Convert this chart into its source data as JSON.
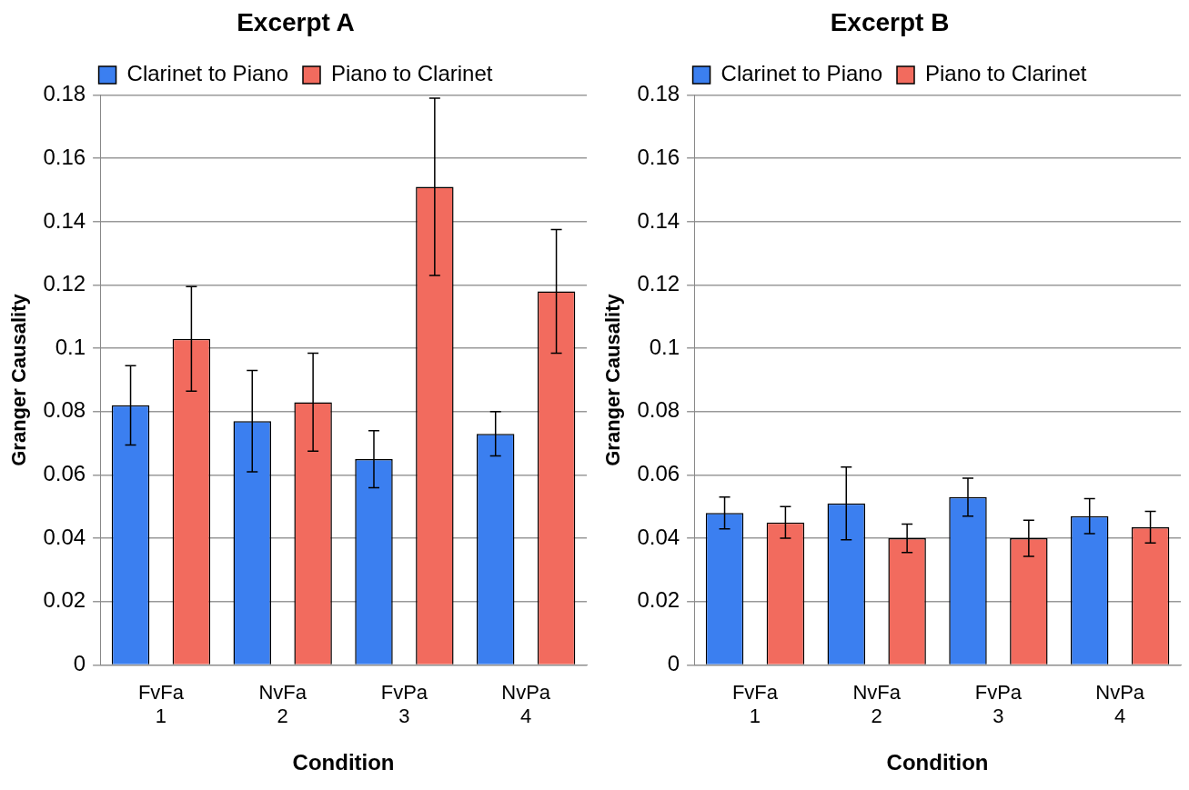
{
  "chart_data": [
    {
      "type": "bar",
      "title": "Excerpt A",
      "xlabel": "Condition",
      "ylabel": "Granger Causality",
      "categories": [
        "FvFa\n1",
        "NvFa\n2",
        "FvPa\n3",
        "NvPa\n4"
      ],
      "series": [
        {
          "name": "Clarinet to Piano",
          "color": "#3b7ff0",
          "values": [
            0.082,
            0.077,
            0.065,
            0.073
          ],
          "errors": [
            0.0125,
            0.016,
            0.009,
            0.007
          ]
        },
        {
          "name": "Piano to Clarinet",
          "color": "#f26b5e",
          "values": [
            0.103,
            0.083,
            0.151,
            0.118
          ],
          "errors": [
            0.0165,
            0.0155,
            0.028,
            0.0195
          ]
        }
      ],
      "ylim": [
        0,
        0.18
      ],
      "yticks": [
        0,
        0.02,
        0.04,
        0.06,
        0.08,
        0.1,
        0.12,
        0.14,
        0.16,
        0.18
      ],
      "grid": "y",
      "legend": "top"
    },
    {
      "type": "bar",
      "title": "Excerpt B",
      "xlabel": "Condition",
      "ylabel": "Granger Causality",
      "categories": [
        "FvFa\n1",
        "NvFa\n2",
        "FvPa\n3",
        "NvPa\n4"
      ],
      "series": [
        {
          "name": "Clarinet to Piano",
          "color": "#3b7ff0",
          "values": [
            0.048,
            0.051,
            0.053,
            0.047
          ],
          "errors": [
            0.005,
            0.0115,
            0.006,
            0.0055
          ]
        },
        {
          "name": "Piano to Clarinet",
          "color": "#f26b5e",
          "values": [
            0.045,
            0.04,
            0.04,
            0.0435
          ],
          "errors": [
            0.005,
            0.0045,
            0.0057,
            0.005
          ]
        }
      ],
      "ylim": [
        0,
        0.18
      ],
      "yticks": [
        0,
        0.02,
        0.04,
        0.06,
        0.08,
        0.1,
        0.12,
        0.14,
        0.16,
        0.18
      ],
      "grid": "y",
      "legend": "top"
    }
  ]
}
